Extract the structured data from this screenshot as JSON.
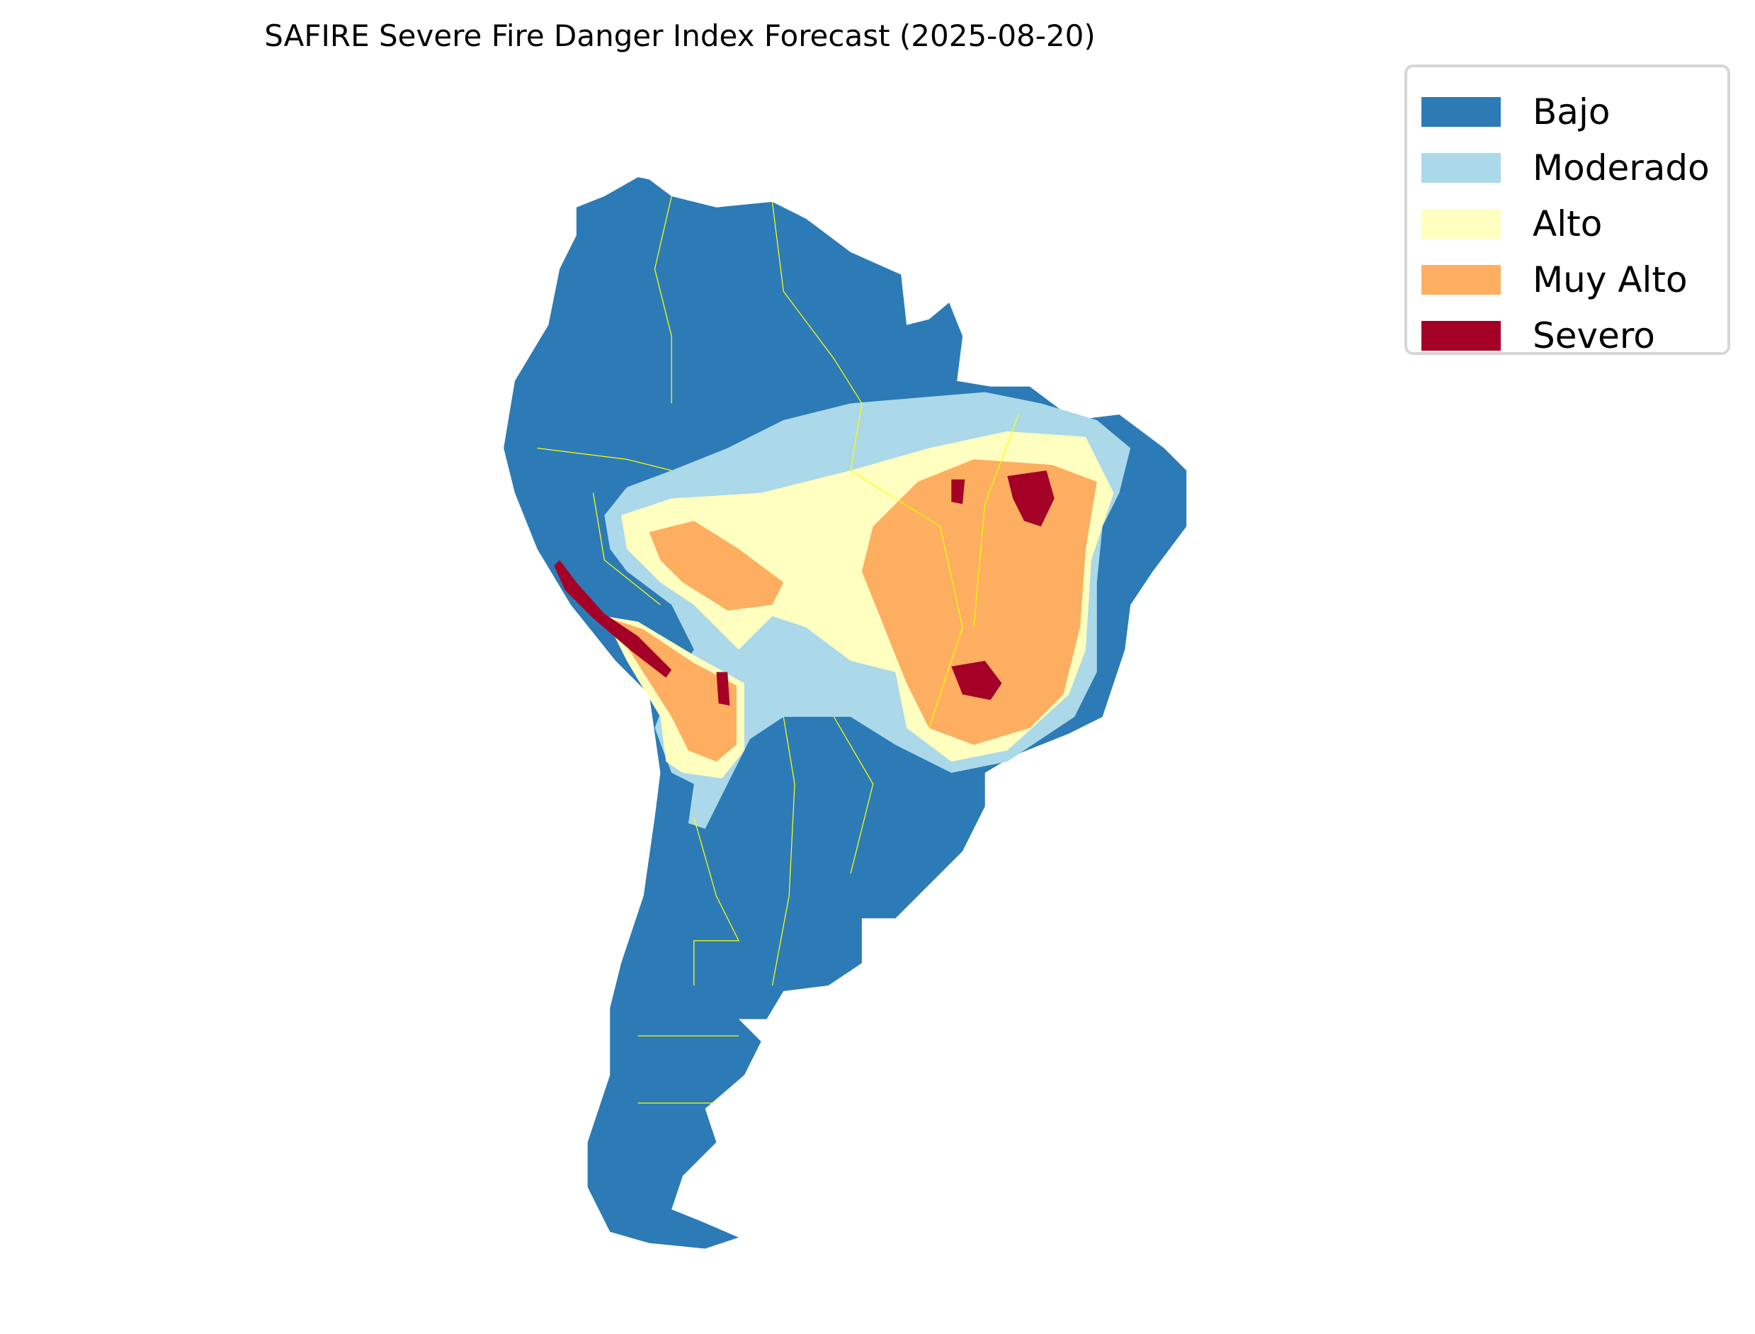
{
  "title": "SAFIRE Severe Fire Danger Index Forecast (2025-08-20)",
  "legend": [
    {
      "label": "Bajo",
      "color": "#2c7bb6"
    },
    {
      "label": "Moderado",
      "color": "#abd9e9"
    },
    {
      "label": "Alto",
      "color": "#ffffbf"
    },
    {
      "label": "Muy Alto",
      "color": "#fdae61"
    },
    {
      "label": "Severo",
      "color": "#a50026"
    }
  ],
  "border_color": "#ffff00"
}
